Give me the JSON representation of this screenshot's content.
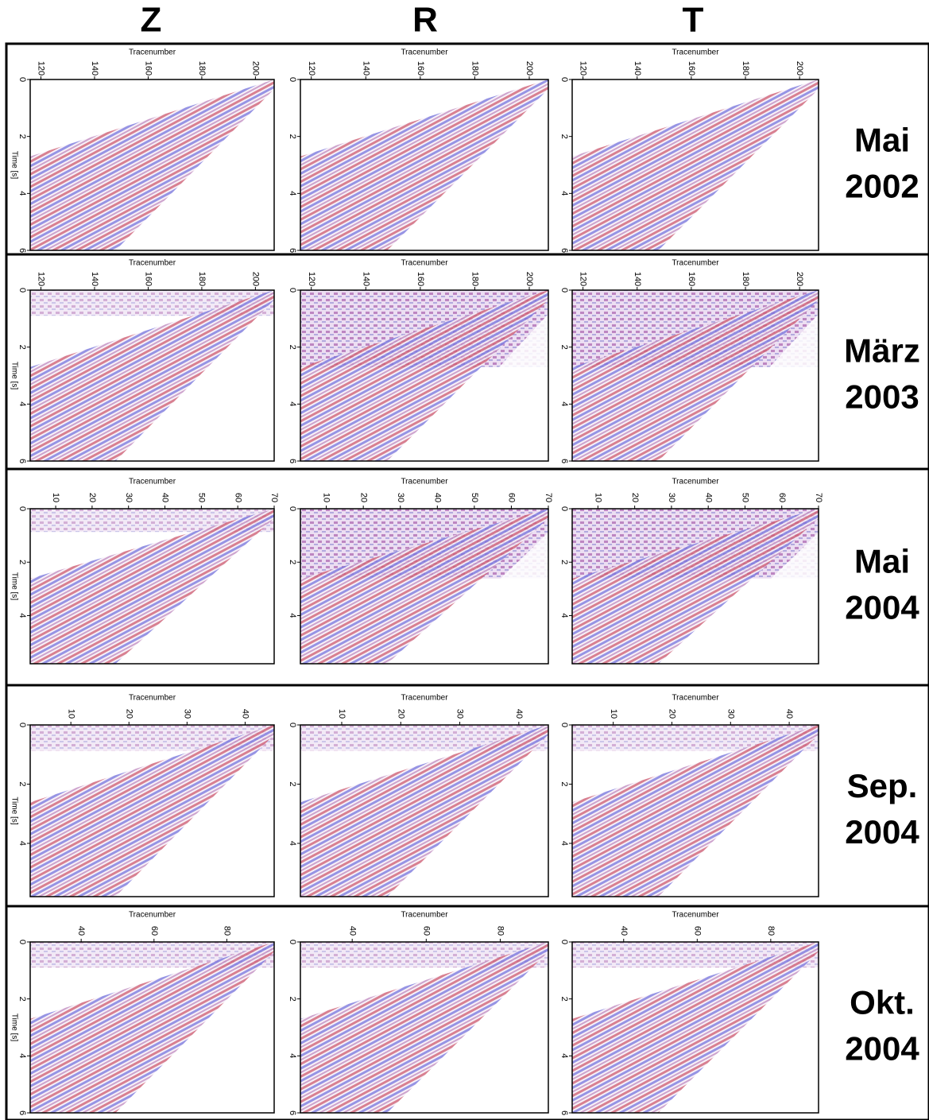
{
  "column_headers": [
    "Z",
    "R",
    "T"
  ],
  "x_label": "Tracenumber",
  "y_label": "Time [s]",
  "rows": [
    {
      "label": [
        "Mai",
        "2002"
      ],
      "xlim": [
        116,
        207
      ],
      "xticks": [
        120,
        140,
        160,
        180,
        200
      ],
      "ylim": [
        0,
        6
      ],
      "yticks": [
        0,
        2,
        4,
        6
      ]
    },
    {
      "label": [
        "März",
        "2003"
      ],
      "xlim": [
        116,
        207
      ],
      "xticks": [
        120,
        140,
        160,
        180,
        200
      ],
      "ylim": [
        0,
        6
      ],
      "yticks": [
        0,
        2,
        4,
        6
      ]
    },
    {
      "label": [
        "Mai",
        "2004"
      ],
      "xlim": [
        3,
        70
      ],
      "xticks": [
        10,
        20,
        30,
        40,
        50,
        60,
        70
      ],
      "ylim": [
        0,
        5.8
      ],
      "yticks": [
        0,
        2,
        4
      ]
    },
    {
      "label": [
        "Sep.",
        "2004"
      ],
      "xlim": [
        3,
        45
      ],
      "xticks": [
        10,
        20,
        30,
        40
      ],
      "ylim": [
        0,
        5.8
      ],
      "yticks": [
        0,
        2,
        4
      ]
    },
    {
      "label": [
        "Okt.",
        "2004"
      ],
      "xlim": [
        26,
        93
      ],
      "xticks": [
        40,
        60,
        80
      ],
      "ylim": [
        0,
        6
      ],
      "yticks": [
        0,
        2,
        4,
        6
      ]
    }
  ]
}
